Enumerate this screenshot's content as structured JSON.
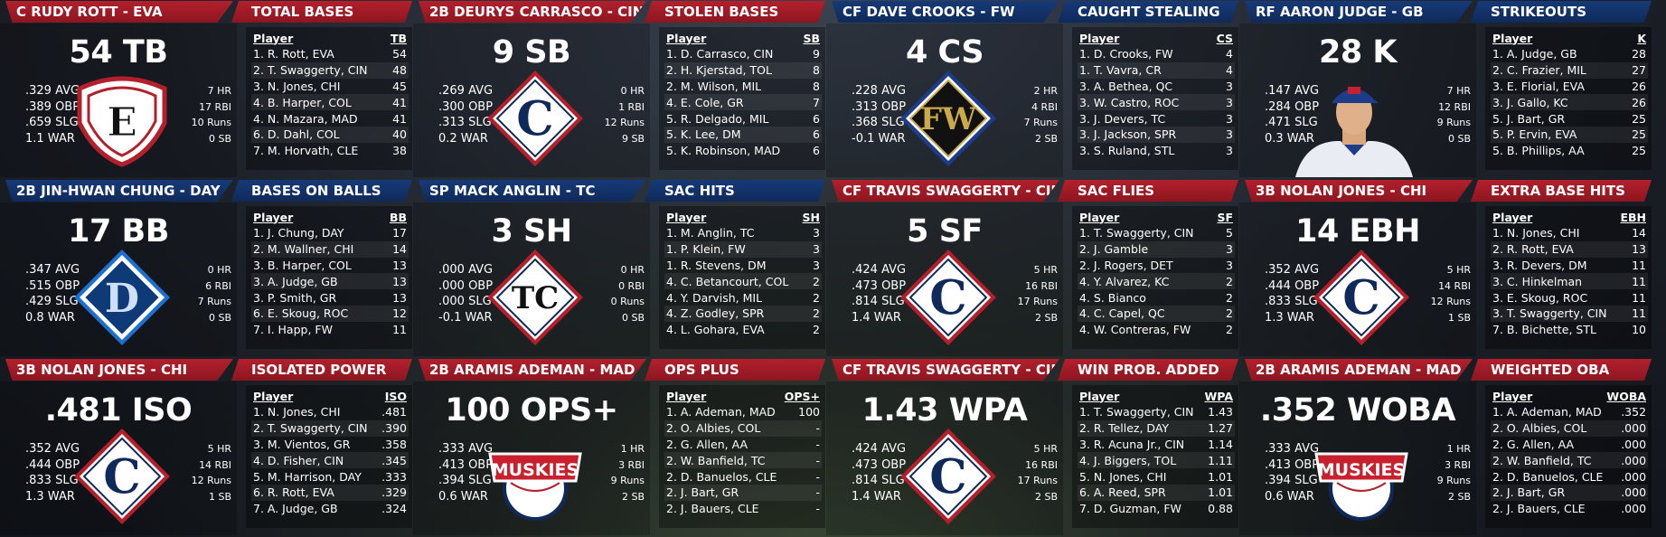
{
  "panels": [
    {
      "player": "C RUDY ROTT - EVA",
      "category": "TOTAL BASES",
      "hdr_color": "red",
      "big": "54 TB",
      "avg": ".329 AVG",
      "obp": ".389 OBP",
      "slg": ".659 SLG",
      "war": "1.1 WAR",
      "hr": "7 HR",
      "rbi": "17 RBI",
      "runs": "10 Runs",
      "sb": "0 SB",
      "logo": "eva-logo-icon",
      "col_player": "Player",
      "col_stat": "TB",
      "rows": [
        [
          "1. R. Rott, EVA",
          "54"
        ],
        [
          "2. T. Swaggerty, CIN",
          "48"
        ],
        [
          "3. N. Jones, CHI",
          "45"
        ],
        [
          "4. B. Harper, COL",
          "41"
        ],
        [
          "4. N. Mazara, MAD",
          "41"
        ],
        [
          "6. D. Dahl, COL",
          "40"
        ],
        [
          "7. M. Horvath, CLE",
          "38"
        ]
      ]
    },
    {
      "player": "2B DEURYS CARRASCO - CIN",
      "category": "STOLEN BASES",
      "hdr_color": "red",
      "big": "9 SB",
      "avg": ".269 AVG",
      "obp": ".300 OBP",
      "slg": ".313 SLG",
      "war": "0.2 WAR",
      "hr": "0 HR",
      "rbi": "1 RBI",
      "runs": "12 Runs",
      "sb": "9 SB",
      "logo": "cin-logo-icon",
      "col_player": "Player",
      "col_stat": "SB",
      "rows": [
        [
          "1. D. Carrasco, CIN",
          "9"
        ],
        [
          "2. H. Kjerstad, TOL",
          "8"
        ],
        [
          "2. M. Wilson, MIL",
          "8"
        ],
        [
          "4. E. Cole, GR",
          "7"
        ],
        [
          "5. R. Delgado, MIL",
          "6"
        ],
        [
          "5. K. Lee, DM",
          "6"
        ],
        [
          "5. K. Robinson, MAD",
          "6"
        ]
      ]
    },
    {
      "player": "CF DAVE CROOKS - FW",
      "category": "CAUGHT STEALING",
      "hdr_color": "navy",
      "big": "4 CS",
      "avg": ".228 AVG",
      "obp": ".313 OBP",
      "slg": ".368 SLG",
      "war": "-0.1 WAR",
      "hr": "2 HR",
      "rbi": "4 RBI",
      "runs": "7 Runs",
      "sb": "2 SB",
      "logo": "fw-logo-icon",
      "col_player": "Player",
      "col_stat": "CS",
      "rows": [
        [
          "1. D. Crooks, FW",
          "4"
        ],
        [
          "1. T. Vavra, CR",
          "4"
        ],
        [
          "3. A. Bethea, QC",
          "3"
        ],
        [
          "3. W. Castro, ROC",
          "3"
        ],
        [
          "3. J. Devers, TC",
          "3"
        ],
        [
          "3. J. Jackson, SPR",
          "3"
        ],
        [
          "3. S. Ruland, STL",
          "3"
        ]
      ]
    },
    {
      "player": "RF AARON JUDGE - GB",
      "category": "STRIKEOUTS",
      "hdr_color": "navy",
      "big": "28 K",
      "avg": ".147 AVG",
      "obp": ".284 OBP",
      "slg": ".471 SLG",
      "war": "0.3 WAR",
      "hr": "7 HR",
      "rbi": "12 RBI",
      "runs": "9 Runs",
      "sb": "0 SB",
      "logo": "player-photo-icon",
      "col_player": "Player",
      "col_stat": "K",
      "rows": [
        [
          "1. A. Judge, GB",
          "28"
        ],
        [
          "2. C. Frazier, MIL",
          "27"
        ],
        [
          "3. E. Florial, EVA",
          "26"
        ],
        [
          "3. J. Gallo, KC",
          "26"
        ],
        [
          "5. J. Bart, GR",
          "25"
        ],
        [
          "5. P. Ervin, EVA",
          "25"
        ],
        [
          "5. B. Phillips, AA",
          "25"
        ]
      ]
    },
    {
      "player": "2B JIN-HWAN CHUNG - DAY",
      "category": "BASES ON BALLS",
      "hdr_color": "navy",
      "big": "17 BB",
      "avg": ".347 AVG",
      "obp": ".515 OBP",
      "slg": ".429 SLG",
      "war": "0.8 WAR",
      "hr": "0 HR",
      "rbi": "6 RBI",
      "runs": "7 Runs",
      "sb": "0 SB",
      "logo": "day-logo-icon",
      "col_player": "Player",
      "col_stat": "BB",
      "rows": [
        [
          "1. J. Chung, DAY",
          "17"
        ],
        [
          "2. M. Wallner, CHI",
          "14"
        ],
        [
          "3. B. Harper, COL",
          "13"
        ],
        [
          "3. A. Judge, GB",
          "13"
        ],
        [
          "3. P. Smith, GR",
          "13"
        ],
        [
          "6. E. Skoug, ROC",
          "12"
        ],
        [
          "7. I. Happ, FW",
          "11"
        ]
      ]
    },
    {
      "player": "SP MACK ANGLIN - TC",
      "category": "SAC HITS",
      "hdr_color": "navy",
      "big": "3 SH",
      "avg": ".000 AVG",
      "obp": ".000 OBP",
      "slg": ".000 SLG",
      "war": "-0.1 WAR",
      "hr": "0 HR",
      "rbi": "0 RBI",
      "runs": "0 Runs",
      "sb": "0 SB",
      "logo": "tc-logo-icon",
      "col_player": "Player",
      "col_stat": "SH",
      "rows": [
        [
          "1. M. Anglin, TC",
          "3"
        ],
        [
          "1. P. Klein, FW",
          "3"
        ],
        [
          "1. R. Stevens, DM",
          "3"
        ],
        [
          "4. C. Betancourt, COL",
          "2"
        ],
        [
          "4. Y. Darvish, MIL",
          "2"
        ],
        [
          "4. Z. Godley, SPR",
          "2"
        ],
        [
          "4. L. Gohara, EVA",
          "2"
        ]
      ]
    },
    {
      "player": "CF TRAVIS SWAGGERTY - CIN",
      "category": "SAC FLIES",
      "hdr_color": "red",
      "big": "5 SF",
      "avg": ".424 AVG",
      "obp": ".473 OBP",
      "slg": ".814 SLG",
      "war": "1.4 WAR",
      "hr": "5 HR",
      "rbi": "16 RBI",
      "runs": "17 Runs",
      "sb": "2 SB",
      "logo": "cin-logo-icon",
      "col_player": "Player",
      "col_stat": "SF",
      "rows": [
        [
          "1. T. Swaggerty, CIN",
          "5"
        ],
        [
          "2. J. Gamble",
          "3"
        ],
        [
          "2. J. Rogers, DET",
          "3"
        ],
        [
          "4. Y. Alvarez, KC",
          "2"
        ],
        [
          "4. S. Bianco",
          "2"
        ],
        [
          "4. C. Capel, QC",
          "2"
        ],
        [
          "4. W. Contreras, FW",
          "2"
        ]
      ]
    },
    {
      "player": "3B NOLAN JONES - CHI",
      "category": "EXTRA BASE HITS",
      "hdr_color": "red",
      "big": "14 EBH",
      "avg": ".352 AVG",
      "obp": ".444 OBP",
      "slg": ".833 SLG",
      "war": "1.3 WAR",
      "hr": "5 HR",
      "rbi": "14 RBI",
      "runs": "12 Runs",
      "sb": "1 SB",
      "logo": "chi-logo-icon",
      "col_player": "Player",
      "col_stat": "EBH",
      "rows": [
        [
          "1. N. Jones, CHI",
          "14"
        ],
        [
          "2. R. Rott, EVA",
          "13"
        ],
        [
          "3. R. Devers, DM",
          "11"
        ],
        [
          "3. C. Hinkelman",
          "11"
        ],
        [
          "3. E. Skoug, ROC",
          "11"
        ],
        [
          "3. T. Swaggerty, CIN",
          "11"
        ],
        [
          "7. B. Bichette, STL",
          "10"
        ]
      ]
    },
    {
      "player": "3B NOLAN JONES - CHI",
      "category": "ISOLATED POWER",
      "hdr_color": "red",
      "big": ".481 ISO",
      "avg": ".352 AVG",
      "obp": ".444 OBP",
      "slg": ".833 SLG",
      "war": "1.3 WAR",
      "hr": "5 HR",
      "rbi": "14 RBI",
      "runs": "12 Runs",
      "sb": "1 SB",
      "logo": "chi-logo-icon",
      "col_player": "Player",
      "col_stat": "ISO",
      "rows": [
        [
          "1. N. Jones, CHI",
          ".481"
        ],
        [
          "2. T. Swaggerty, CIN",
          ".390"
        ],
        [
          "3. M. Vientos, GR",
          ".358"
        ],
        [
          "4. D. Fisher, CIN",
          ".345"
        ],
        [
          "5. M. Harrison, DAY",
          ".333"
        ],
        [
          "6. R. Rott, EVA",
          ".329"
        ],
        [
          "7. A. Judge, GB",
          ".324"
        ]
      ]
    },
    {
      "player": "2B ARAMIS ADEMAN - MAD",
      "category": "OPS PLUS",
      "hdr_color": "red",
      "big": "100 OPS+",
      "avg": ".333 AVG",
      "obp": ".413 OBP",
      "slg": ".394 SLG",
      "war": "0.6 WAR",
      "hr": "1 HR",
      "rbi": "3 RBI",
      "runs": "9 Runs",
      "sb": "2 SB",
      "logo": "muskies-logo-icon",
      "logo_text": "MUSKIES",
      "col_player": "Player",
      "col_stat": "OPS+",
      "rows": [
        [
          "1. A. Ademan, MAD",
          "100"
        ],
        [
          "2. O. Albies, COL",
          "-"
        ],
        [
          "2. G. Allen, AA",
          "-"
        ],
        [
          "2. W. Banfield, TC",
          "-"
        ],
        [
          "2. D. Banuelos, CLE",
          "-"
        ],
        [
          "2. J. Bart, GR",
          "-"
        ],
        [
          "2. J. Bauers, CLE",
          "-"
        ]
      ]
    },
    {
      "player": "CF TRAVIS SWAGGERTY - CIN",
      "category": "WIN PROB. ADDED",
      "hdr_color": "red",
      "big": "1.43 WPA",
      "avg": ".424 AVG",
      "obp": ".473 OBP",
      "slg": ".814 SLG",
      "war": "1.4 WAR",
      "hr": "5 HR",
      "rbi": "16 RBI",
      "runs": "17 Runs",
      "sb": "2 SB",
      "logo": "cin-logo-icon",
      "col_player": "Player",
      "col_stat": "WPA",
      "rows": [
        [
          "1. T. Swaggerty, CIN",
          "1.43"
        ],
        [
          "2. R. Tellez, DAY",
          "1.27"
        ],
        [
          "3. R. Acuna Jr., CIN",
          "1.14"
        ],
        [
          "4. J. Biggers, TOL",
          "1.11"
        ],
        [
          "5. N. Jones, CHI",
          "1.01"
        ],
        [
          "6. A. Reed, SPR",
          "1.01"
        ],
        [
          "7. D. Guzman, FW",
          "0.88"
        ]
      ]
    },
    {
      "player": "2B ARAMIS ADEMAN - MAD",
      "category": "WEIGHTED OBA",
      "hdr_color": "red",
      "big": ".352 WOBA",
      "avg": ".333 AVG",
      "obp": ".413 OBP",
      "slg": ".394 SLG",
      "war": "0.6 WAR",
      "hr": "1 HR",
      "rbi": "3 RBI",
      "runs": "9 Runs",
      "sb": "2 SB",
      "logo": "muskies-logo-icon",
      "logo_text": "MUSKIES",
      "col_player": "Player",
      "col_stat": "WOBA",
      "rows": [
        [
          "1. A. Ademan, MAD",
          ".352"
        ],
        [
          "2. O. Albies, COL",
          ".000"
        ],
        [
          "2. G. Allen, AA",
          ".000"
        ],
        [
          "2. W. Banfield, TC",
          ".000"
        ],
        [
          "2. D. Banuelos, CLE",
          ".000"
        ],
        [
          "2. J. Bart, GR",
          ".000"
        ],
        [
          "2. J. Bauers, CLE",
          ".000"
        ]
      ]
    }
  ],
  "logo_letters": {
    "eva-logo-icon": "E",
    "cin-logo-icon": "C",
    "fw-logo-icon": "FW",
    "day-logo-icon": "D",
    "tc-logo-icon": "TC",
    "chi-logo-icon": "C"
  }
}
